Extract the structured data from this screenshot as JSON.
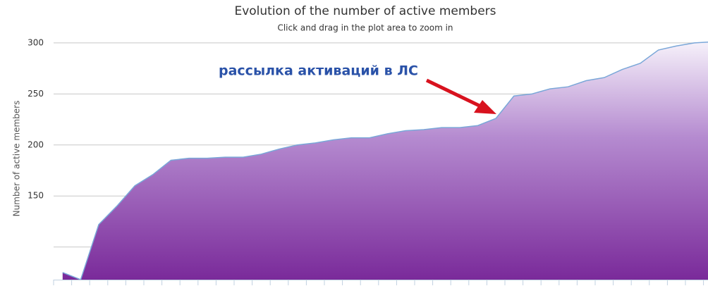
{
  "chart_data": {
    "type": "area",
    "title": "Evolution of the number of active members",
    "subtitle": "Click and drag in the plot area to zoom in",
    "y_label": "Number of active members",
    "annotation": "рассылка активаций в ЛС",
    "categories": [
      null,
      null,
      null,
      null,
      null,
      null,
      null,
      null,
      null,
      null,
      null,
      null,
      null,
      null,
      null,
      null,
      null,
      null,
      null,
      null,
      null,
      null,
      null,
      null,
      null,
      null,
      null,
      null,
      null,
      null,
      null,
      null,
      null,
      null,
      null,
      null,
      null
    ],
    "series": [
      {
        "name": "Active members",
        "color": "#7aa7d8",
        "values": [
          75,
          68,
          122,
          140,
          160,
          171,
          185,
          187,
          187,
          188,
          188,
          191,
          196,
          200,
          202,
          205,
          207,
          207,
          211,
          214,
          215,
          217,
          217,
          219,
          226,
          248,
          250,
          255,
          257,
          263,
          266,
          274,
          280,
          293,
          297,
          300,
          301
        ]
      }
    ],
    "ylim": [
      68,
      302
    ],
    "yticks": [
      150,
      200,
      250,
      300
    ],
    "ygrid": [
      100,
      150,
      200,
      250,
      300
    ],
    "grid": true
  }
}
